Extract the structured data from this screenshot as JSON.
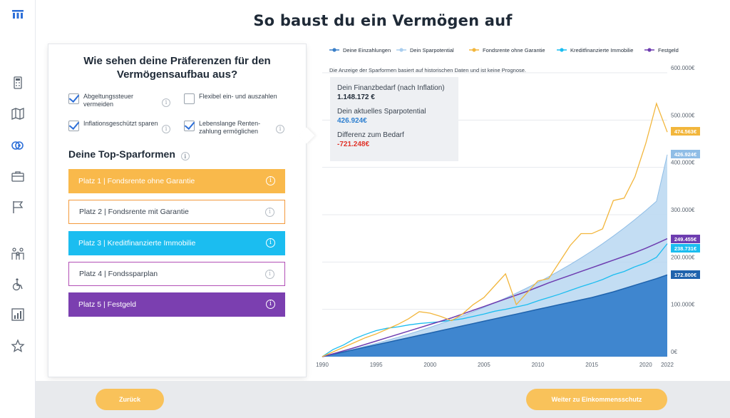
{
  "page": {
    "title": "So baust du ein Vermögen auf"
  },
  "sidebar": {
    "icons": [
      "calculator-icon",
      "map-icon",
      "coins-icon",
      "briefcase-icon",
      "flag-icon",
      "family-icon",
      "wheelchair-icon",
      "chart-report-icon",
      "star-icon"
    ],
    "accent": "#2d6fd8"
  },
  "preferences": {
    "title": "Wie sehen deine Präferenzen für den Vermögensaufbau aus?",
    "options": [
      {
        "label": "Abgeltungssteuer vermeiden",
        "checked": true
      },
      {
        "label": "Flexibel ein- und auszahlen",
        "checked": false
      },
      {
        "label": "Inflationsgeschützt sparen",
        "checked": true
      },
      {
        "label": "Lebenslange Renten-zahlung ermöglichen",
        "checked": true
      }
    ],
    "top_title": "Deine Top-Sparformen",
    "ranks": [
      {
        "label": "Platz 1 | Fondsrente ohne Garantie",
        "color": "#f9b94b",
        "filled": true
      },
      {
        "label": "Platz 2 | Fondsrente mit Garantie",
        "color": "#f39a3d",
        "filled": false
      },
      {
        "label": "Platz 3 | Kreditfinanzierte Immobilie",
        "color": "#1bbdf0",
        "filled": true
      },
      {
        "label": "Platz 4 | Fondssparplan",
        "color": "#b24fb6",
        "filled": false
      },
      {
        "label": "Platz 5 | Festgeld",
        "color": "#7b3fb0",
        "filled": true
      }
    ]
  },
  "info_box": {
    "need_label": "Dein Finanzbedarf (nach Inflation)",
    "need_value": "1.148.172 €",
    "potential_label": "Dein aktuelles Sparpotential",
    "potential_value": "426.924€",
    "diff_label": "Differenz zum Bedarf",
    "diff_value": "-721.248€",
    "potential_color": "#2d7fd0",
    "diff_color": "#e0342a"
  },
  "chart_data": {
    "type": "area",
    "note": "Die Anzeige der Sparformen basiert auf historischen Daten und ist keine Prognose.",
    "x_tick_labels": [
      "1990",
      "1995",
      "2000",
      "2005",
      "2010",
      "2015",
      "2020",
      "2022"
    ],
    "y_tick_labels": [
      "0€",
      "100.000€",
      "200.000€",
      "300.000€",
      "400.000€",
      "500.000€",
      "600.000€"
    ],
    "xlim": [
      1990,
      2022
    ],
    "ylim": [
      0,
      600000
    ],
    "x": [
      1990,
      1991,
      1992,
      1993,
      1994,
      1995,
      1996,
      1997,
      1998,
      1999,
      2000,
      2001,
      2002,
      2003,
      2004,
      2005,
      2006,
      2007,
      2008,
      2009,
      2010,
      2011,
      2012,
      2013,
      2014,
      2015,
      2016,
      2017,
      2018,
      2019,
      2020,
      2021,
      2022
    ],
    "series": [
      {
        "name": "Deine Einzahlungen",
        "color": "#3a7fc8",
        "end_label": "172.800€",
        "values": [
          0,
          5000,
          10000,
          15000,
          20000,
          25000,
          30000,
          35000,
          40000,
          45000,
          50000,
          55000,
          60000,
          65000,
          70000,
          75000,
          80000,
          85000,
          90000,
          95000,
          100000,
          105000,
          110000,
          115000,
          120000,
          125000,
          131000,
          137000,
          144000,
          151000,
          158000,
          165000,
          172800
        ]
      },
      {
        "name": "Dein Sparpotential",
        "color": "#a9cdee",
        "end_label": "426.924€",
        "values": [
          0,
          5200,
          10600,
          16200,
          22000,
          28000,
          34300,
          40800,
          47600,
          54600,
          62000,
          69700,
          77800,
          86200,
          95000,
          104200,
          113800,
          123800,
          134300,
          145300,
          156800,
          168900,
          181500,
          194800,
          208700,
          223300,
          238700,
          254900,
          271900,
          289800,
          308700,
          328500,
          426924
        ]
      },
      {
        "name": "Fondsrente ohne Garantie",
        "color": "#f2b63c",
        "end_label": "474.563€",
        "values": [
          0,
          10000,
          20000,
          30000,
          40000,
          48000,
          58000,
          68000,
          80000,
          95000,
          92000,
          85000,
          76000,
          90000,
          110000,
          125000,
          150000,
          175000,
          110000,
          135000,
          160000,
          165000,
          200000,
          235000,
          260000,
          260000,
          270000,
          330000,
          335000,
          380000,
          450000,
          535000,
          474563
        ]
      },
      {
        "name": "Kreditfinanzierte Immobilie",
        "color": "#1bbdf0",
        "end_label": "238.731€",
        "values": [
          0,
          15000,
          25000,
          38000,
          47000,
          55000,
          60000,
          63000,
          67000,
          70000,
          72000,
          74000,
          77000,
          80000,
          85000,
          90000,
          96000,
          100000,
          105000,
          110000,
          118000,
          125000,
          132000,
          140000,
          148000,
          155000,
          163000,
          173000,
          180000,
          190000,
          198000,
          210000,
          238731
        ]
      },
      {
        "name": "Festgeld",
        "color": "#6e3db0",
        "end_label": "249.455€",
        "values": [
          0,
          6000,
          12500,
          19000,
          26000,
          33000,
          40000,
          47000,
          54000,
          61000,
          68000,
          75000,
          82000,
          90000,
          98000,
          106000,
          114000,
          122000,
          130000,
          138000,
          147000,
          156000,
          164000,
          172000,
          180000,
          188000,
          196000,
          204000,
          212000,
          220000,
          229000,
          239000,
          249455
        ]
      }
    ]
  },
  "footer": {
    "back_label": "Zurück",
    "next_label": "Weiter zu Einkommensschutz",
    "button_color": "#f9c25a"
  }
}
